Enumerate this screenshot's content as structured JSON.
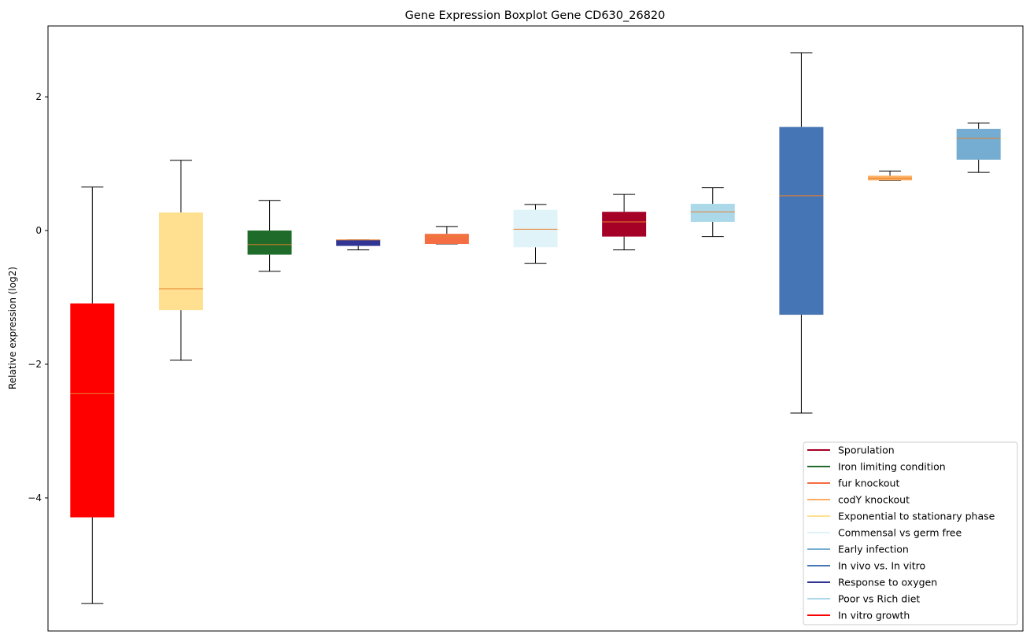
{
  "chart_data": {
    "type": "boxplot",
    "title": "Gene Expression Boxplot Gene CD630_26820",
    "xlabel": "",
    "ylabel": "Relative expression (log2)",
    "ylim": [
      -5.99,
      3.06
    ],
    "yticks": [
      -4,
      -2,
      0,
      2
    ],
    "ytick_labels": [
      "−4",
      "−2",
      "0",
      "2"
    ],
    "grid": false,
    "legend_position": "bottom-right",
    "median_color": "#e8812e",
    "boxes": [
      {
        "name": "In vitro growth",
        "color": "#ff0000",
        "whislo": -5.58,
        "q1": -4.29,
        "med": -2.44,
        "q3": -1.09,
        "whishi": 0.65
      },
      {
        "name": "Exponential to stationary phase",
        "color": "#fee090",
        "whislo": -1.94,
        "q1": -1.19,
        "med": -0.87,
        "q3": 0.27,
        "whishi": 1.05
      },
      {
        "name": "Iron limiting condition",
        "color": "#1e6b2a",
        "whislo": -0.61,
        "q1": -0.36,
        "med": -0.21,
        "q3": 0.0,
        "whishi": 0.45
      },
      {
        "name": "Response to oxygen",
        "color": "#313695",
        "whislo": -0.29,
        "q1": -0.23,
        "med": -0.14,
        "q3": -0.14,
        "whishi": -0.14
      },
      {
        "name": "fur knockout",
        "color": "#f46d43",
        "whislo": -0.2,
        "q1": -0.2,
        "med": -0.09,
        "q3": -0.05,
        "whishi": 0.06
      },
      {
        "name": "Commensal vs germ free",
        "color": "#e0f3f8",
        "whislo": -0.49,
        "q1": -0.25,
        "med": 0.02,
        "q3": 0.31,
        "whishi": 0.39
      },
      {
        "name": "Sporulation",
        "color": "#a50026",
        "whislo": -0.29,
        "q1": -0.09,
        "med": 0.13,
        "q3": 0.28,
        "whishi": 0.54
      },
      {
        "name": "Poor vs Rich diet",
        "color": "#abd9e9",
        "whislo": -0.09,
        "q1": 0.13,
        "med": 0.28,
        "q3": 0.4,
        "whishi": 0.64
      },
      {
        "name": "In vivo vs. In vitro",
        "color": "#4575b4",
        "whislo": -2.73,
        "q1": -1.26,
        "med": 0.52,
        "q3": 1.55,
        "whishi": 2.66
      },
      {
        "name": "codY knockout",
        "color": "#fdae61",
        "whislo": 0.75,
        "q1": 0.75,
        "med": 0.78,
        "q3": 0.82,
        "whishi": 0.89
      },
      {
        "name": "Early infection",
        "color": "#74add1",
        "whislo": 0.87,
        "q1": 1.06,
        "med": 1.38,
        "q3": 1.52,
        "whishi": 1.61
      }
    ],
    "legend": [
      {
        "label": "Sporulation",
        "color": "#a50026"
      },
      {
        "label": "Iron limiting condition",
        "color": "#1e6b2a"
      },
      {
        "label": "fur knockout",
        "color": "#f46d43"
      },
      {
        "label": "codY knockout",
        "color": "#fdae61"
      },
      {
        "label": "Exponential to stationary phase",
        "color": "#fee090"
      },
      {
        "label": "Commensal vs germ free",
        "color": "#e0f3f8"
      },
      {
        "label": "Early infection",
        "color": "#74add1"
      },
      {
        "label": "In vivo vs. In vitro",
        "color": "#4575b4"
      },
      {
        "label": "Response to oxygen",
        "color": "#313695"
      },
      {
        "label": "Poor vs Rich diet",
        "color": "#abd9e9"
      },
      {
        "label": "In vitro growth",
        "color": "#ff0000"
      }
    ]
  }
}
